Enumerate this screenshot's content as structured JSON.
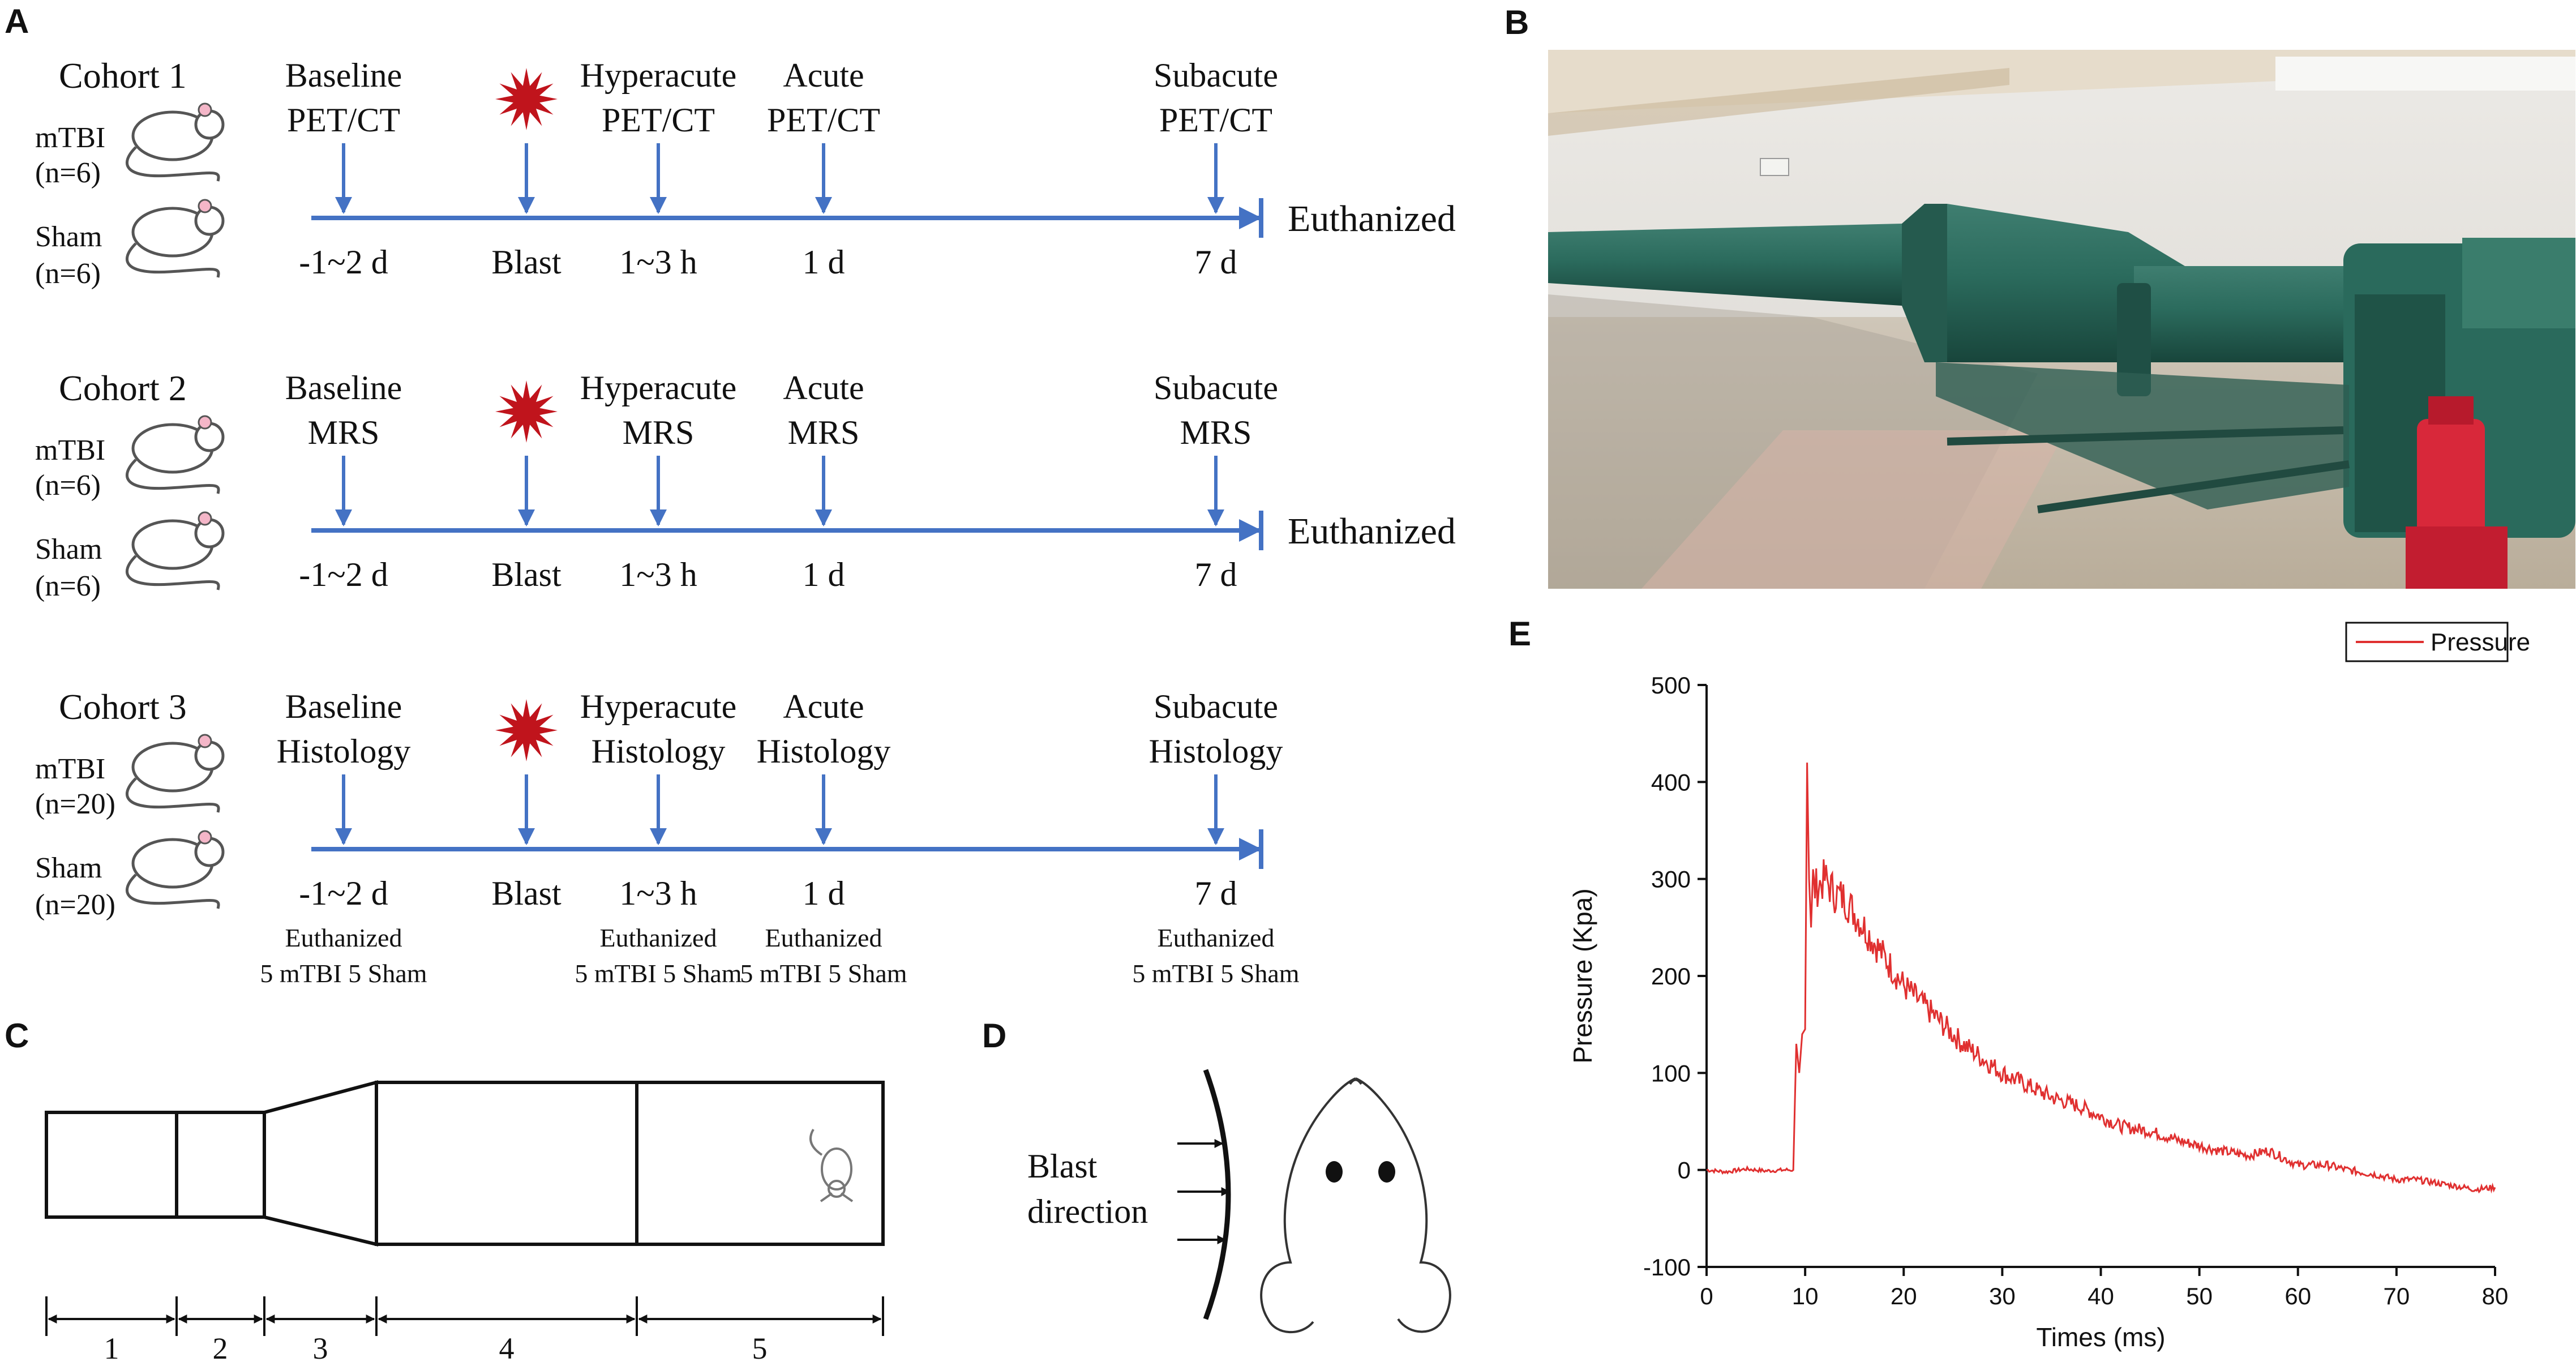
{
  "panels": {
    "a": "A",
    "b": "B",
    "c": "C",
    "d": "D",
    "e": "E"
  },
  "panel_a": {
    "cohorts": [
      {
        "title": "Cohort 1",
        "group1": "mTBI",
        "n1": "(n=6)",
        "group2": "Sham",
        "n2": "(n=6)",
        "stages": [
          [
            "Baseline",
            "PET/CT"
          ],
          [
            "Hyperacute",
            "PET/CT"
          ],
          [
            "Acute",
            "PET/CT"
          ],
          [
            "Subacute",
            "PET/CT"
          ]
        ],
        "times": [
          "-1~2 d",
          "Blast",
          "1~3 h",
          "1 d",
          "7 d"
        ],
        "end": "Euthanized",
        "notes": []
      },
      {
        "title": "Cohort 2",
        "group1": "mTBI",
        "n1": "(n=6)",
        "group2": "Sham",
        "n2": "(n=6)",
        "stages": [
          [
            "Baseline",
            "MRS"
          ],
          [
            "Hyperacute",
            "MRS"
          ],
          [
            "Acute",
            "MRS"
          ],
          [
            "Subacute",
            "MRS"
          ]
        ],
        "times": [
          "-1~2 d",
          "Blast",
          "1~3 h",
          "1 d",
          "7 d"
        ],
        "end": "Euthanized",
        "notes": []
      },
      {
        "title": "Cohort 3",
        "group1": "mTBI",
        "n1": "(n=20)",
        "group2": "Sham",
        "n2": "(n=20)",
        "stages": [
          [
            "Baseline",
            "Histology"
          ],
          [
            "Hyperacute",
            "Histology"
          ],
          [
            "Acute",
            "Histology"
          ],
          [
            "Subacute",
            "Histology"
          ]
        ],
        "times": [
          "-1~2 d",
          "Blast",
          "1~3 h",
          "1 d",
          "7 d"
        ],
        "end": "",
        "notes": [
          [
            "Euthanized",
            "5 mTBI 5 Sham"
          ],
          [
            "Euthanized",
            "5 mTBI 5 Sham"
          ],
          [
            "Euthanized",
            "5 mTBI 5 Sham"
          ],
          [
            "Euthanized",
            "5 mTBI 5 Sham"
          ]
        ]
      }
    ]
  },
  "panel_c": {
    "sections": [
      "1",
      "2",
      "3",
      "4",
      "5"
    ]
  },
  "panel_d": {
    "label_line1": "Blast",
    "label_line2": "direction"
  },
  "chart_data": {
    "type": "line",
    "title": "",
    "xlabel": "Times (ms)",
    "ylabel": "Pressure (Kpa)",
    "xlim": [
      0,
      80
    ],
    "ylim": [
      -100,
      500
    ],
    "xticks": [
      0,
      10,
      20,
      30,
      40,
      50,
      60,
      70,
      80
    ],
    "yticks": [
      -100,
      0,
      100,
      200,
      300,
      400,
      500
    ],
    "legend": "top-right",
    "grid": false,
    "series": [
      {
        "name": "Pressure",
        "color": "#e03030",
        "x": [
          0,
          2,
          4,
          6,
          8,
          8.8,
          9.1,
          9.4,
          9.7,
          10,
          10.2,
          10.4,
          10.6,
          10.8,
          11,
          12,
          13,
          14,
          15,
          16,
          17,
          18,
          19,
          20,
          22,
          24,
          26,
          28,
          30,
          32,
          35,
          38,
          40,
          42,
          45,
          48,
          50,
          52,
          55,
          57,
          60,
          63,
          65,
          68,
          70,
          72,
          75,
          78,
          80
        ],
        "y": [
          0,
          -2,
          1,
          -1,
          0,
          0,
          130,
          100,
          140,
          145,
          420,
          300,
          250,
          310,
          290,
          300,
          285,
          280,
          265,
          250,
          235,
          220,
          205,
          190,
          170,
          150,
          130,
          115,
          100,
          90,
          75,
          65,
          55,
          45,
          40,
          30,
          25,
          20,
          15,
          20,
          5,
          5,
          0,
          -5,
          -10,
          -10,
          -15,
          -20,
          -18
        ]
      }
    ]
  }
}
